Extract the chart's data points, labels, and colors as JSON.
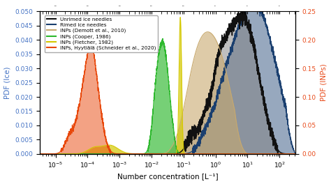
{
  "xlabel": "Number concentration [L⁻¹]",
  "ylabel_left": "PDF (Ice)",
  "ylabel_right": "PDF (INPs)",
  "xlim_log": [
    -5.5,
    2.5
  ],
  "ylim_left": [
    0,
    0.05
  ],
  "ylim_right": [
    0,
    0.25
  ],
  "legend_entries": [
    "Unrimed ice needles",
    "Rimed ice needles",
    "INPs (Demott et al., 2010)",
    "INPs (Cooper, 1986)",
    "INPs (Fletcher, 1982)",
    "INPs, Hyytiälä (Schneider et al., 2020)"
  ],
  "colors": {
    "unrimed": "#111111",
    "rimed": "#1a3f6f",
    "demott": "#c8a96e",
    "cooper": "#2db82d",
    "fletcher": "#d4c800",
    "hyytiala": "#e8470a"
  },
  "background_color": "#ffffff"
}
